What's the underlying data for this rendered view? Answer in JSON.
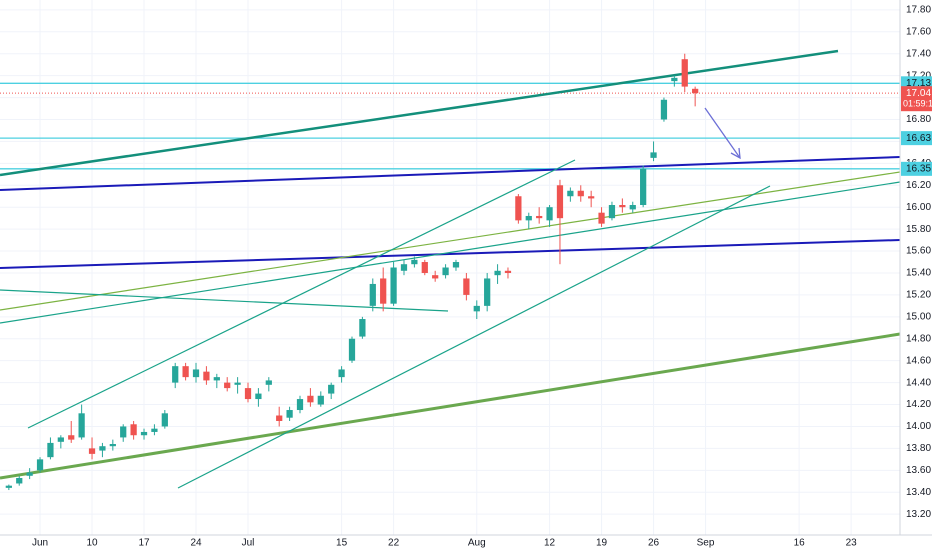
{
  "chart_data": {
    "type": "candlestick",
    "open": [
      13.44,
      13.48,
      13.55,
      13.6,
      13.72,
      13.86,
      13.92,
      13.9,
      13.8,
      13.78,
      13.82,
      13.9,
      14.02,
      13.92,
      13.95,
      14.0,
      14.4,
      14.55,
      14.45,
      14.5,
      14.42,
      14.4,
      14.38,
      14.35,
      14.25,
      14.38,
      14.1,
      14.08,
      14.15,
      14.28,
      14.2,
      14.3,
      14.45,
      14.6,
      14.82,
      15.1,
      15.35,
      15.12,
      15.42,
      15.48,
      15.5,
      15.38,
      15.38,
      15.45,
      15.35,
      15.05,
      15.1,
      15.38,
      15.42,
      16.1,
      15.88,
      15.92,
      15.88,
      16.2,
      16.1,
      16.15,
      16.1,
      15.95,
      15.9,
      16.02,
      15.98,
      16.02,
      16.45,
      16.8,
      17.15,
      17.35,
      17.08
    ],
    "high": [
      13.47,
      13.55,
      13.62,
      13.72,
      13.9,
      13.92,
      14.05,
      14.2,
      13.9,
      13.85,
      13.88,
      14.02,
      14.05,
      13.98,
      14.02,
      14.15,
      14.58,
      14.58,
      14.58,
      14.55,
      14.48,
      14.45,
      14.45,
      14.4,
      14.35,
      14.45,
      14.18,
      14.18,
      14.28,
      14.35,
      14.32,
      14.4,
      14.55,
      14.82,
      15.0,
      15.35,
      15.45,
      15.5,
      15.52,
      15.55,
      15.52,
      15.42,
      15.48,
      15.52,
      15.4,
      15.15,
      15.4,
      15.48,
      15.45,
      16.12,
      15.95,
      16.0,
      16.02,
      16.25,
      16.18,
      16.2,
      16.15,
      16.0,
      16.05,
      16.08,
      16.05,
      16.38,
      16.6,
      17.0,
      17.2,
      17.4,
      17.1
    ],
    "low": [
      13.42,
      13.46,
      13.52,
      13.58,
      13.7,
      13.8,
      13.85,
      13.88,
      13.7,
      13.72,
      13.78,
      13.86,
      13.88,
      13.88,
      13.92,
      13.98,
      14.35,
      14.42,
      14.4,
      14.38,
      14.35,
      14.32,
      14.3,
      14.22,
      14.18,
      14.32,
      14.0,
      14.05,
      14.12,
      14.18,
      14.18,
      14.25,
      14.4,
      14.58,
      14.8,
      15.05,
      15.05,
      15.1,
      15.38,
      15.45,
      15.38,
      15.32,
      15.35,
      15.42,
      15.15,
      14.98,
      15.05,
      15.3,
      15.35,
      15.85,
      15.8,
      15.85,
      15.82,
      15.48,
      16.05,
      16.05,
      16.0,
      15.82,
      15.88,
      15.95,
      15.95,
      16.0,
      16.42,
      16.78,
      17.1,
      17.05,
      16.92
    ],
    "close": [
      13.46,
      13.53,
      13.58,
      13.7,
      13.85,
      13.9,
      13.88,
      14.12,
      13.75,
      13.82,
      13.84,
      14.0,
      13.92,
      13.95,
      13.98,
      14.12,
      14.55,
      14.45,
      14.52,
      14.42,
      14.45,
      14.35,
      14.4,
      14.25,
      14.3,
      14.42,
      14.05,
      14.15,
      14.25,
      14.22,
      14.28,
      14.38,
      14.52,
      14.8,
      14.98,
      15.3,
      15.12,
      15.45,
      15.48,
      15.52,
      15.4,
      15.35,
      15.45,
      15.5,
      15.2,
      15.1,
      15.35,
      15.42,
      15.4,
      15.88,
      15.92,
      15.9,
      16.0,
      15.9,
      16.15,
      16.1,
      16.08,
      15.85,
      16.02,
      16.0,
      16.02,
      16.35,
      16.5,
      16.98,
      17.18,
      17.1,
      17.04
    ],
    "up_color": "#26a69a",
    "down_color": "#ef5350",
    "ylim": [
      13.01,
      17.89
    ],
    "yticks": [
      {
        "value": 13.2,
        "label": "13.20"
      },
      {
        "value": 13.4,
        "label": "13.40"
      },
      {
        "value": 13.6,
        "label": "13.60"
      },
      {
        "value": 13.8,
        "label": "13.80"
      },
      {
        "value": 14.0,
        "label": "14.00"
      },
      {
        "value": 14.2,
        "label": "14.20"
      },
      {
        "value": 14.4,
        "label": "14.40"
      },
      {
        "value": 14.6,
        "label": "14.60"
      },
      {
        "value": 14.8,
        "label": "14.80"
      },
      {
        "value": 15.0,
        "label": "15.00"
      },
      {
        "value": 15.2,
        "label": "15.20"
      },
      {
        "value": 15.4,
        "label": "15.40"
      },
      {
        "value": 15.6,
        "label": "15.60"
      },
      {
        "value": 15.8,
        "label": "15.80"
      },
      {
        "value": 16.0,
        "label": "16.00"
      },
      {
        "value": 16.2,
        "label": "16.20"
      },
      {
        "value": 16.4,
        "label": "16.40"
      },
      {
        "value": 16.6,
        "label": "16.60"
      },
      {
        "value": 16.8,
        "label": "16.80"
      },
      {
        "value": 17.0,
        "label": "17.00"
      },
      {
        "value": 17.2,
        "label": "17.20"
      },
      {
        "value": 17.4,
        "label": "17.40"
      },
      {
        "value": 17.6,
        "label": "17.60"
      },
      {
        "value": 17.8,
        "label": "17.80"
      }
    ],
    "xlim": [
      -0.85,
      85.7
    ],
    "xticks": [
      {
        "value": 3,
        "label": "Jun"
      },
      {
        "value": 8,
        "label": "10"
      },
      {
        "value": 13,
        "label": "17"
      },
      {
        "value": 18,
        "label": "24"
      },
      {
        "value": 23,
        "label": "Jul"
      },
      {
        "value": 32,
        "label": "15"
      },
      {
        "value": 37,
        "label": "22"
      },
      {
        "value": 45,
        "label": "Aug"
      },
      {
        "value": 52,
        "label": "12"
      },
      {
        "value": 57,
        "label": "19"
      },
      {
        "value": 62,
        "label": "26"
      },
      {
        "value": 67,
        "label": "Sep"
      },
      {
        "value": 76,
        "label": "16"
      },
      {
        "value": 81,
        "label": "23"
      }
    ],
    "levels": [
      {
        "value": 17.13,
        "label": "17.13"
      },
      {
        "value": 16.63,
        "label": "16.63"
      },
      {
        "value": 16.35,
        "label": "16.35"
      }
    ],
    "level_color": "#4dd0e1",
    "last_price": {
      "value": 17.04,
      "label": "17.04"
    },
    "countdown": "01:59:11",
    "grid": true
  }
}
